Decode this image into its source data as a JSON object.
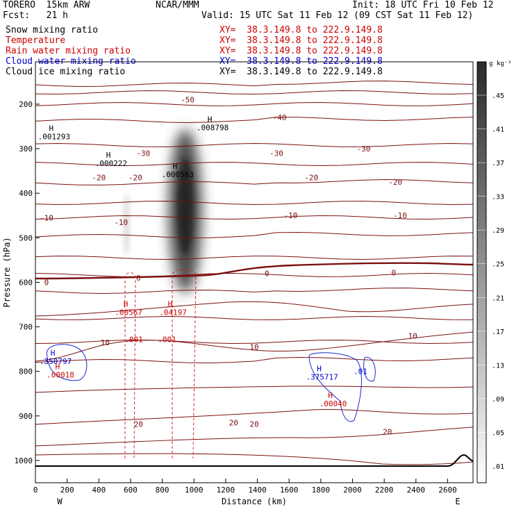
{
  "header": {
    "model": "TORERO  15km ARW",
    "org": "NCAR/MMM",
    "init": "Init: 18 UTC Fri 10 Feb 12",
    "fcst": "Fcst:   21 h",
    "valid": "Valid: 15 UTC Sat 11 Feb 12 (09 CST Sat 11 Feb 12)"
  },
  "fields": [
    {
      "name": "Snow mixing ratio",
      "xy": "XY=  38.3.149.8 to 222.9.149.8",
      "color": "#000000"
    },
    {
      "name": "Temperature",
      "xy": "XY=  38.3.149.8 to 222.9.149.8",
      "color": "#cc0000"
    },
    {
      "name": "Rain water mixing ratio",
      "xy": "XY=  38.3.149.8 to 222.9.149.8",
      "color": "#cc0000"
    },
    {
      "name": "Cloud water mixing ratio",
      "xy": "XY=  38.3.149.8 to 222.9.149.8",
      "color": "#0000cc"
    },
    {
      "name": "Cloud ice mixing ratio",
      "xy": "XY=  38.3.149.8 to 222.9.149.8",
      "color": "#000000"
    }
  ],
  "chart_data": {
    "type": "cross-section",
    "xlabel": "Distance (km)",
    "ylabel": "Pressure (hPa)",
    "xlim": [
      0,
      2760
    ],
    "ylim": [
      1050,
      100
    ],
    "x_ticks": [
      0,
      200,
      400,
      600,
      800,
      1000,
      1200,
      1400,
      1600,
      1800,
      2000,
      2200,
      2400,
      2600
    ],
    "y_ticks": [
      200,
      300,
      400,
      500,
      600,
      700,
      800,
      900,
      1000
    ],
    "end_labels": {
      "left": "W",
      "right": "E"
    },
    "colorbar": {
      "unit": "g kg⁻¹",
      "ticks": [
        ".45",
        ".41",
        ".37",
        ".33",
        ".29",
        ".25",
        ".21",
        ".17",
        ".13",
        ".09",
        ".05",
        ".01"
      ]
    },
    "temperature_labels": [
      {
        "text": "-50",
        "x": 960,
        "p": 190
      },
      {
        "text": "-40",
        "x": 1540,
        "p": 230
      },
      {
        "text": "-30",
        "x": 680,
        "p": 310
      },
      {
        "text": "-30",
        "x": 1520,
        "p": 310
      },
      {
        "text": "-30",
        "x": 2070,
        "p": 300
      },
      {
        "text": "-20",
        "x": 400,
        "p": 365
      },
      {
        "text": "-20",
        "x": 630,
        "p": 365
      },
      {
        "text": "-20",
        "x": 1740,
        "p": 365
      },
      {
        "text": "-20",
        "x": 2270,
        "p": 375
      },
      {
        "text": "-10",
        "x": 70,
        "p": 455
      },
      {
        "text": "-10",
        "x": 540,
        "p": 465
      },
      {
        "text": "-10",
        "x": 1610,
        "p": 450
      },
      {
        "text": "-10",
        "x": 2300,
        "p": 450
      },
      {
        "text": "0",
        "x": 70,
        "p": 600
      },
      {
        "text": "0",
        "x": 650,
        "p": 590
      },
      {
        "text": "0",
        "x": 1460,
        "p": 580
      },
      {
        "text": "0",
        "x": 2260,
        "p": 578
      },
      {
        "text": "10",
        "x": 440,
        "p": 735
      },
      {
        "text": "10",
        "x": 1380,
        "p": 745
      },
      {
        "text": "10",
        "x": 2380,
        "p": 720
      },
      {
        "text": "20",
        "x": 650,
        "p": 918
      },
      {
        "text": "20",
        "x": 1250,
        "p": 915
      },
      {
        "text": "20",
        "x": 1380,
        "p": 918
      },
      {
        "text": "20",
        "x": 2220,
        "p": 935
      }
    ],
    "maxima": [
      {
        "label": "H",
        "value": ".001293",
        "x": 100,
        "p": 260,
        "color": "#000000"
      },
      {
        "label": "H",
        "value": ".000222",
        "x": 460,
        "p": 320,
        "color": "#000000"
      },
      {
        "label": "H",
        "value": ".000563",
        "x": 880,
        "p": 345,
        "color": "#000000"
      },
      {
        "label": "H",
        "value": ".008798",
        "x": 1100,
        "p": 240,
        "color": "#000000"
      },
      {
        "label": "H",
        "value": ".00567",
        "x": 570,
        "p": 655,
        "color": "#cc0000"
      },
      {
        "label": "H",
        "value": ".04197",
        "x": 850,
        "p": 655,
        "color": "#cc0000"
      },
      {
        "label": "H",
        "value": ".350797",
        "x": 110,
        "p": 765,
        "color": "#0000cc"
      },
      {
        "label": "H",
        "value": ".00018",
        "x": 140,
        "p": 795,
        "color": "#cc0000"
      },
      {
        "label": "H",
        "value": ".375717",
        "x": 1790,
        "p": 800,
        "color": "#0000cc"
      },
      {
        "label": "H",
        "value": ".00040",
        "x": 1860,
        "p": 860,
        "color": "#cc0000"
      }
    ],
    "contour_labels": [
      {
        "text": ".001",
        "x": 620,
        "p": 728,
        "color": "#cc0000"
      },
      {
        "text": ".001",
        "x": 830,
        "p": 728,
        "color": "#cc0000"
      },
      {
        "text": ".01",
        "x": 2050,
        "p": 800,
        "color": "#0000cc"
      }
    ]
  }
}
